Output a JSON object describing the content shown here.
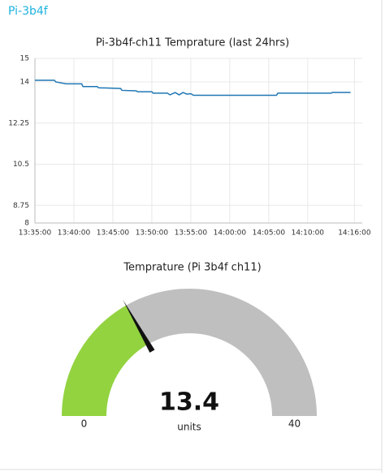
{
  "header": {
    "title": "Pi-3b4f"
  },
  "chart_data": [
    {
      "type": "line",
      "title": "Pi-3b4f-ch11 Temprature (last 24hrs)",
      "x": [
        "13:35:00",
        "13:37:30",
        "13:37:40",
        "13:39:00",
        "13:41:00",
        "13:41:10",
        "13:43:00",
        "13:43:10",
        "13:46:00",
        "13:46:10",
        "13:48:00",
        "13:48:10",
        "13:50:00",
        "13:50:10",
        "13:52:00",
        "13:52:20",
        "13:53:00",
        "13:53:30",
        "13:54:00",
        "13:54:30",
        "13:55:00",
        "13:55:20",
        "14:06:00",
        "14:06:10",
        "14:13:00",
        "14:13:10",
        "14:15:30"
      ],
      "series": [
        {
          "color": "#1f77b4",
          "values": [
            14.07,
            14.07,
            14.0,
            13.92,
            13.92,
            13.8,
            13.8,
            13.75,
            13.72,
            13.64,
            13.62,
            13.58,
            13.58,
            13.52,
            13.52,
            13.45,
            13.55,
            13.45,
            13.55,
            13.48,
            13.5,
            13.43,
            13.43,
            13.52,
            13.52,
            13.55,
            13.55
          ]
        }
      ],
      "xlim": [
        "13:35:00",
        "14:17:00"
      ],
      "xticks": [
        "13:35:00",
        "13:40:00",
        "13:45:00",
        "13:50:00",
        "13:55:00",
        "14:00:00",
        "14:05:00",
        "14:10:00",
        "14:16:00"
      ],
      "ylim": [
        8,
        15
      ],
      "yticks": [
        8,
        8.75,
        10.5,
        12.25,
        14,
        15
      ],
      "grid": true
    },
    {
      "type": "gauge",
      "title": "Temprature (Pi 3b4f ch11)",
      "value": 13.4,
      "units": "units",
      "min": 0,
      "max": 40,
      "color": "#92d33f",
      "track_color": "#bfbfbf"
    }
  ]
}
